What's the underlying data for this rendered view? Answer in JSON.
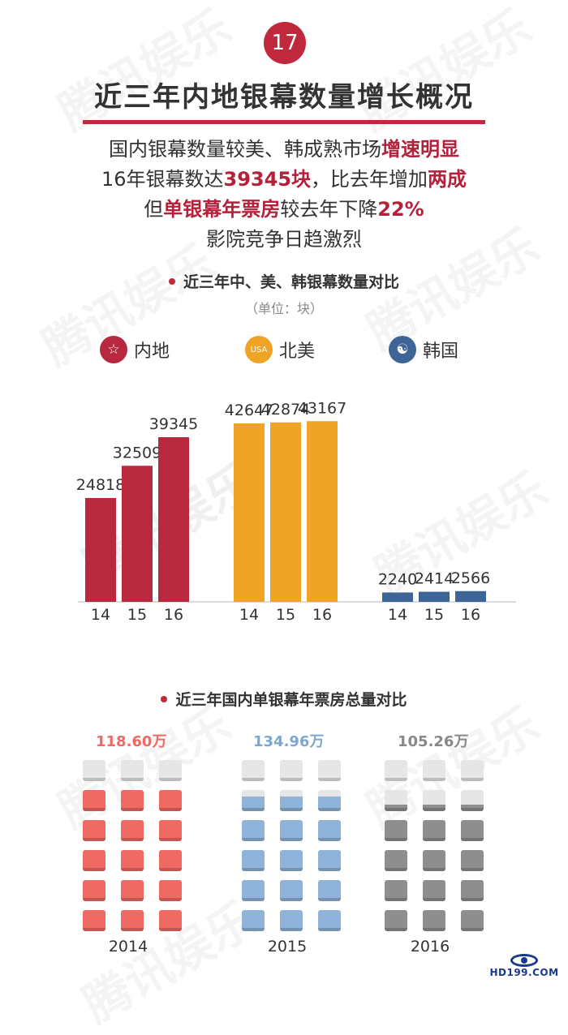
{
  "badge": "17",
  "title": "近三年内地银幕数量增长概况",
  "summary": {
    "line1": {
      "a": "国内银幕数量较美、韩成熟市场",
      "b": "增速明显"
    },
    "line2": {
      "a": "16年银幕数达",
      "b": "39345块",
      "c": "，比去年增加",
      "d": "两成"
    },
    "line3": {
      "a": "但",
      "b": "单银幕年票房",
      "c": "较去年下降",
      "d": "22%"
    },
    "line4": "影院竞争日趋激烈"
  },
  "watermark": "腾讯娱乐",
  "section1": {
    "title": "近三年中、美、韩银幕数量对比",
    "unit": "（单位：块）"
  },
  "section2": {
    "title": "近三年国内单银幕年票房总量对比"
  },
  "colors": {
    "mainland": "#b8283f",
    "north_america": "#efa427",
    "korea": "#3d6596",
    "seat2014": "#f06a64",
    "seat2015": "#8fb3d9",
    "seat2016": "#8e8e8e",
    "seat_empty": "#e6e6e6"
  },
  "legend": [
    {
      "label": "内地",
      "icon": "star-icon",
      "glyph": "☆"
    },
    {
      "label": "北美",
      "icon": "usa-icon",
      "glyph": "USA"
    },
    {
      "label": "韩国",
      "icon": "taeguk-icon",
      "glyph": "☯"
    }
  ],
  "chart_data": {
    "type": "bar",
    "title": "近三年中、美、韩银幕数量对比",
    "unit": "（单位：块）",
    "categories": [
      "14",
      "15",
      "16"
    ],
    "series": [
      {
        "name": "内地",
        "values": [
          24818,
          32509,
          39345
        ]
      },
      {
        "name": "北美",
        "values": [
          42647,
          42874,
          43167
        ]
      },
      {
        "name": "韩国",
        "values": [
          2240,
          2414,
          2566
        ]
      }
    ],
    "ylim": [
      0,
      50000
    ],
    "grid": false,
    "legend_position": "top"
  },
  "box_office": {
    "title": "近三年国内单银幕年票房总量对比",
    "years": [
      "2014",
      "2015",
      "2016"
    ],
    "values": [
      "118.60万",
      "134.96万",
      "105.26万"
    ],
    "seat_fill": [
      [
        0,
        1,
        1,
        1,
        1,
        1
      ],
      [
        0,
        0.7,
        1,
        1,
        1,
        1
      ],
      [
        0,
        0.3,
        1,
        1,
        1,
        1
      ]
    ]
  },
  "logo": "HD199.COM"
}
